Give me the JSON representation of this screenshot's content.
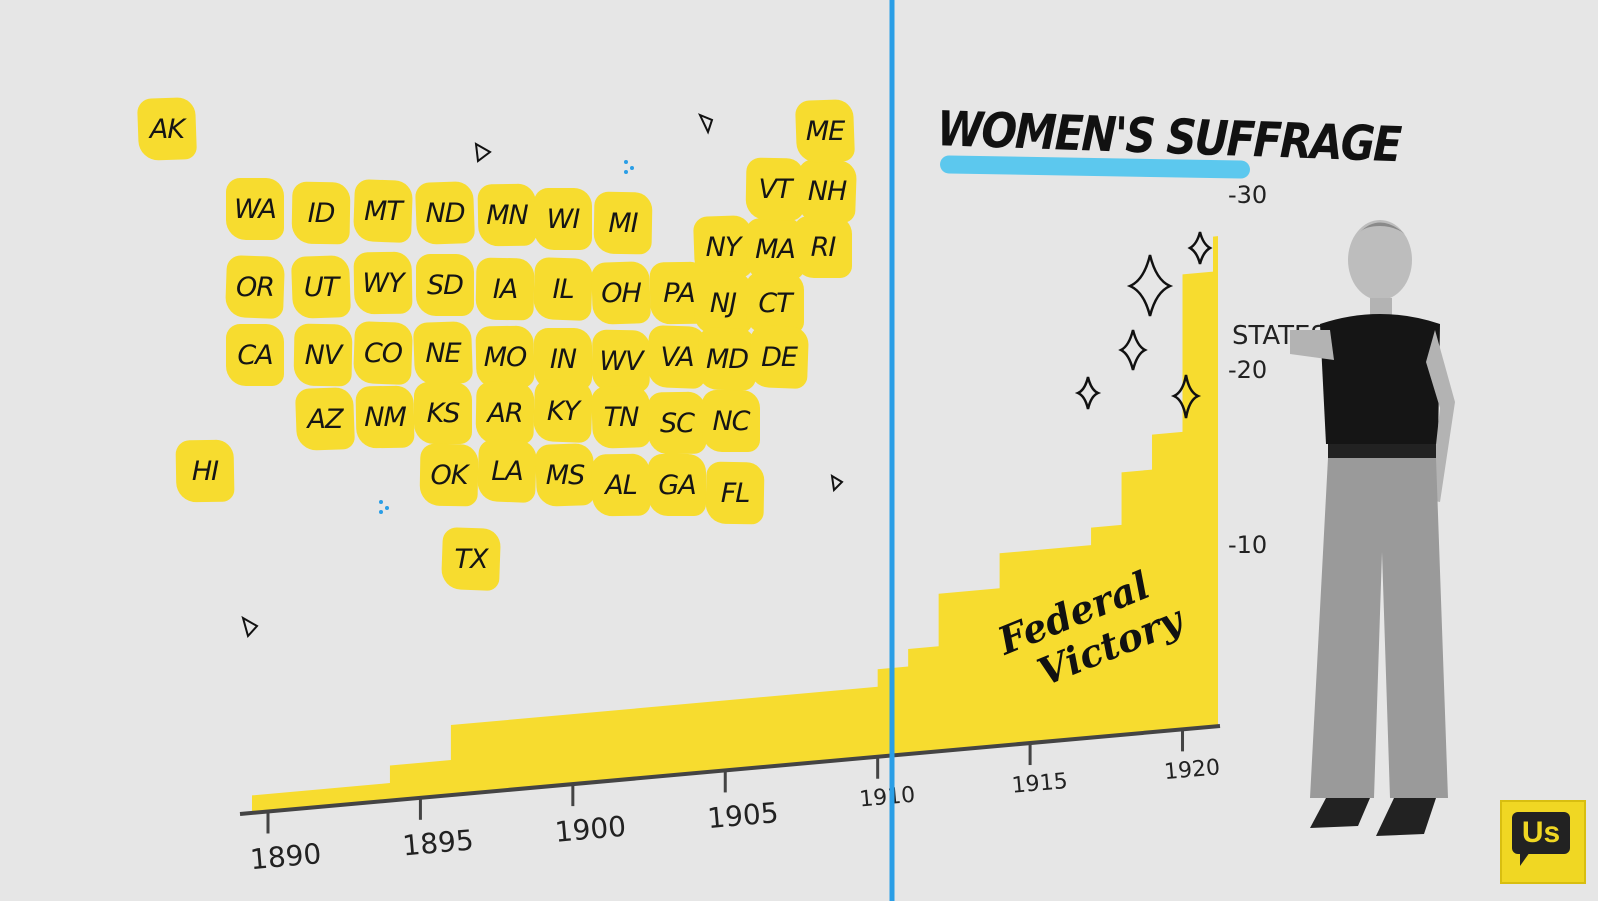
{
  "title": "WOMEN'S SUFFRAGE",
  "chart_data": {
    "type": "area",
    "x_ticks": [
      "1890",
      "1895",
      "1900",
      "1905",
      "1910",
      "1915",
      "1920"
    ],
    "y_ticks": [
      "10",
      "20",
      "30"
    ],
    "y_unit_label": "STATES",
    "annotation": "Federal Victory",
    "x": [
      1890,
      1894,
      1896,
      1908,
      1910,
      1911,
      1912,
      1914,
      1917,
      1918,
      1919,
      1920,
      1921
    ],
    "y": [
      1,
      2,
      4,
      4,
      5,
      6,
      9,
      11,
      12,
      15,
      17,
      26,
      28
    ],
    "xlim": [
      1889,
      1921
    ],
    "ylim": [
      0,
      32
    ]
  },
  "states": [
    {
      "code": "AK"
    },
    {
      "code": "HI"
    },
    {
      "code": "WA"
    },
    {
      "code": "ID"
    },
    {
      "code": "MT"
    },
    {
      "code": "ND"
    },
    {
      "code": "MN"
    },
    {
      "code": "WI"
    },
    {
      "code": "MI"
    },
    {
      "code": "OR"
    },
    {
      "code": "UT"
    },
    {
      "code": "WY"
    },
    {
      "code": "SD"
    },
    {
      "code": "IA"
    },
    {
      "code": "IL"
    },
    {
      "code": "OH"
    },
    {
      "code": "PA"
    },
    {
      "code": "CA"
    },
    {
      "code": "NV"
    },
    {
      "code": "CO"
    },
    {
      "code": "NE"
    },
    {
      "code": "MO"
    },
    {
      "code": "IN"
    },
    {
      "code": "WV"
    },
    {
      "code": "VA"
    },
    {
      "code": "AZ"
    },
    {
      "code": "NM"
    },
    {
      "code": "KS"
    },
    {
      "code": "AR"
    },
    {
      "code": "KY"
    },
    {
      "code": "TN"
    },
    {
      "code": "SC"
    },
    {
      "code": "NC"
    },
    {
      "code": "OK"
    },
    {
      "code": "LA"
    },
    {
      "code": "MS"
    },
    {
      "code": "AL"
    },
    {
      "code": "GA"
    },
    {
      "code": "FL"
    },
    {
      "code": "TX"
    },
    {
      "code": "NY"
    },
    {
      "code": "MA"
    },
    {
      "code": "RI"
    },
    {
      "code": "VT"
    },
    {
      "code": "NH"
    },
    {
      "code": "ME"
    },
    {
      "code": "NJ"
    },
    {
      "code": "CT"
    },
    {
      "code": "MD"
    },
    {
      "code": "DE"
    }
  ],
  "logo_text": "Us",
  "colors": {
    "background": "#e6e6e6",
    "highlight": "#f7dc2f",
    "divider": "#2a9ee6",
    "title_underline": "#5cc8ee"
  }
}
